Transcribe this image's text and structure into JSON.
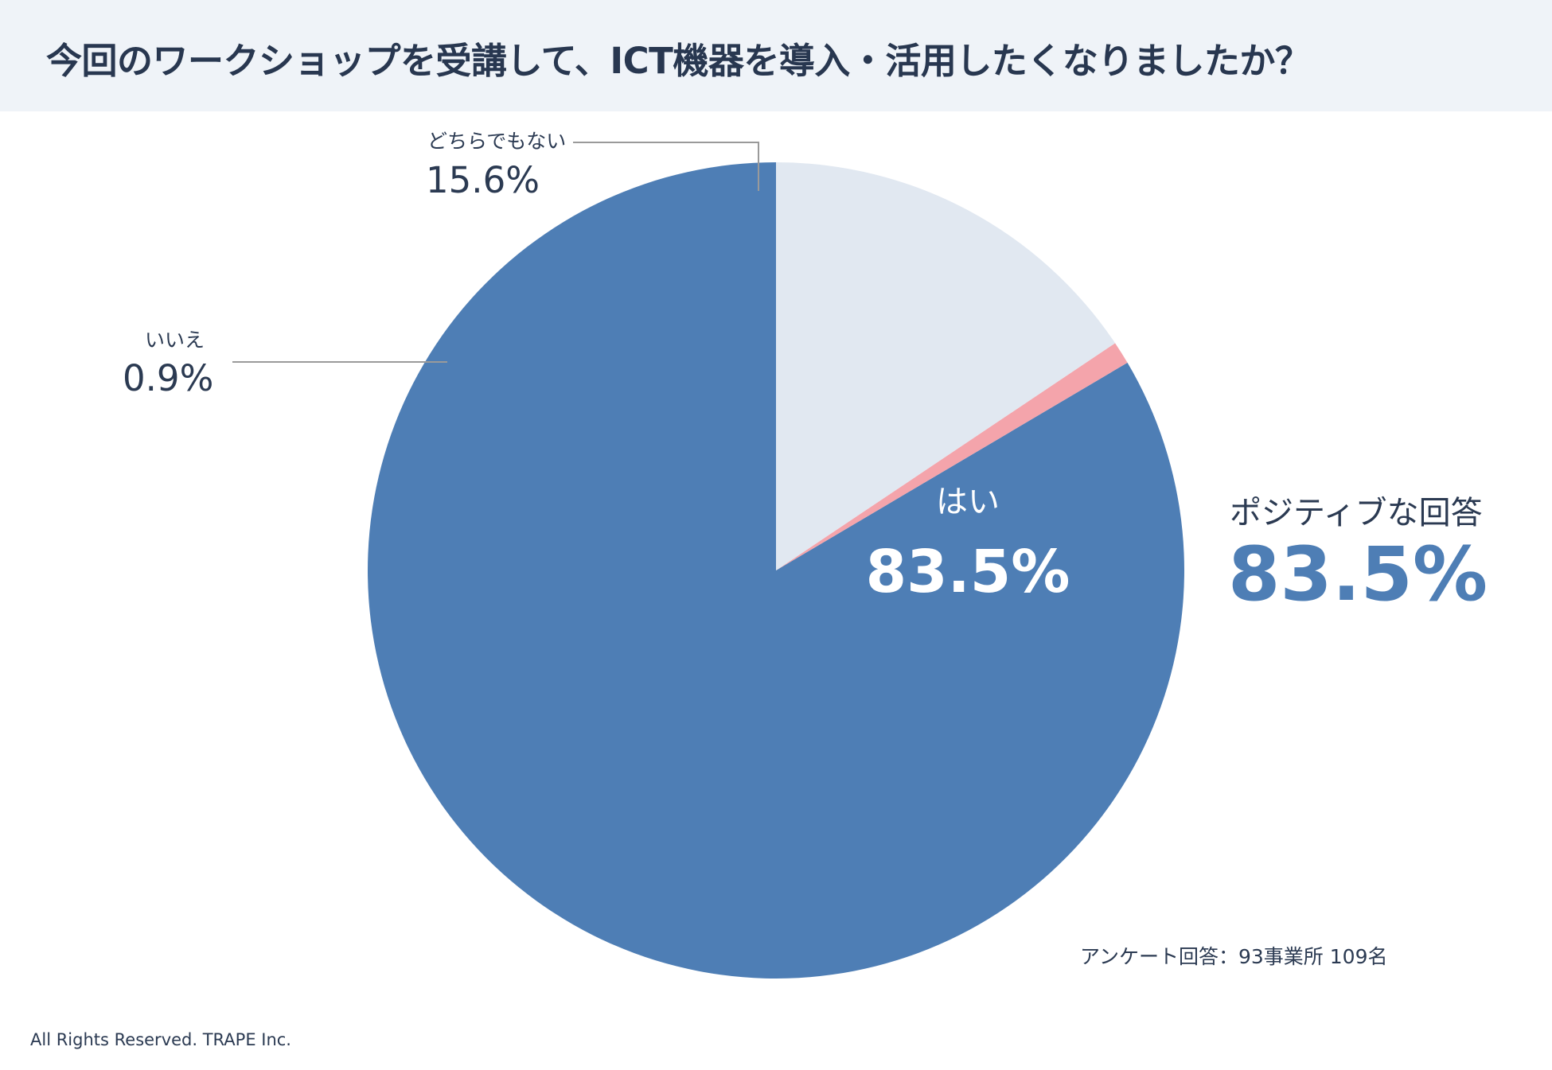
{
  "title": "今回のワークショップを受講して、ICT機器を導入・活用したくなりましたか？",
  "chart_data": {
    "type": "pie",
    "title": "今回のワークショップを受講して、ICT機器を導入・活用したくなりましたか？",
    "start": "12 o'clock",
    "direction": "counterclockwise from 'はい' ending at 'どちらでもない'",
    "slices": [
      {
        "label": "はい",
        "value": 83.5,
        "display": "83.5%",
        "color": "#4e7eb5"
      },
      {
        "label": "いいえ",
        "value": 0.9,
        "display": "0.9%",
        "color": "#f4a4ab"
      },
      {
        "label": "どちらでもない",
        "value": 15.6,
        "display": "15.6%",
        "color": "#e1e8f1"
      }
    ]
  },
  "summary": {
    "label": "ポジティブな回答",
    "value": "83.5%",
    "color": "#4e7eb5"
  },
  "note": "アンケート回答：93事業所 109名",
  "footer": "All Rights Reserved. TRAPE Inc."
}
